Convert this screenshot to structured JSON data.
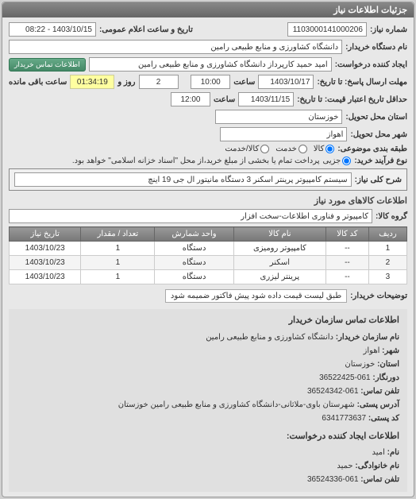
{
  "header": {
    "title": "جزئیات اطلاعات نیاز"
  },
  "need": {
    "label_number": "شماره نیاز:",
    "number": "1103000141000206",
    "label_datetime": "تاریخ و ساعت اعلام عمومی:",
    "datetime": "1403/10/15 - 08:22",
    "label_buyer": "نام دستگاه خریدار:",
    "buyer": "دانشگاه کشاورزی و منابع طبیعی رامین",
    "label_creator": "ایجاد کننده درخواست:",
    "creator": "امید حمید کارپرداز دانشگاه کشاورزی و منابع طبیعی رامین",
    "contact_btn": "اطلاعات تماس خریدار",
    "label_deadline": "مهلت ارسال پاسخ: تا تاریخ:",
    "deadline_date": "1403/10/17",
    "label_hour": "ساعت",
    "deadline_time": "10:00",
    "remain_days": "2",
    "label_days_and": "روز و",
    "remain_time": "01:34:19",
    "label_remain": "ساعت باقی مانده",
    "label_quote": "حداقل تاریخ اعتبار قیمت: تا تاریخ:",
    "quote_date": "1403/11/15",
    "quote_time": "12:00",
    "label_province": "استان محل تحویل:",
    "province": "خوزستان",
    "label_city": "شهر محل تحویل:",
    "city": "اهواز",
    "label_class": "طبقه بندی موضوعی:",
    "opt_goods": "کالا",
    "opt_service": "خدمت",
    "opt_both": "کالا/خدمت",
    "opt_other": "جزیی",
    "label_process": "نوع فرآیند خرید:",
    "process_note": "پرداخت تمام یا بخشی از مبلغ خرید،از محل \"اسناد خزانه اسلامی\" خواهد بود."
  },
  "desc": {
    "label": "شرح کلی نیاز:",
    "text": "سیستم کامپیوتر پرینتر اسکنر 3 دستگاه مانیتور ال جی 19 اینچ"
  },
  "items_title": "اطلاعات کالاهای مورد نیاز",
  "group": {
    "label": "گروه کالا:",
    "value": "کامپیوتر و فناوری اطلاعات-سخت افزار"
  },
  "table": {
    "cols": [
      "ردیف",
      "کد کالا",
      "نام کالا",
      "واحد شمارش",
      "تعداد / مقدار",
      "تاریخ نیاز"
    ],
    "rows": [
      [
        "1",
        "--",
        "کامپیوتر رومیزی",
        "دستگاه",
        "1",
        "1403/10/23"
      ],
      [
        "2",
        "--",
        "اسکنر",
        "دستگاه",
        "1",
        "1403/10/23"
      ],
      [
        "3",
        "--",
        "پرینتر لیزری",
        "دستگاه",
        "1",
        "1403/10/23"
      ]
    ]
  },
  "buyer_note": {
    "label": "توضیحات خریدار:",
    "text": "طبق لیست قیمت داده شود پیش فاکتور ضمیمه شود"
  },
  "contact": {
    "title": "اطلاعات تماس سازمان خریدار",
    "org_label": "نام سازمان خریدار:",
    "org": "دانشگاه کشاورزی و منابع طبیعی رامین",
    "city_label": "شهر:",
    "city": "اهواز",
    "province_label": "استان:",
    "province": "خوزستان",
    "fax_label": "دورنگار:",
    "fax": "061-36522425",
    "phone_label": "تلفن تماس:",
    "phone": "061-36524342",
    "address_label": "آدرس پستی:",
    "address": "شهرستان باوی-ملاثانی-دانشگاه کشاورزی و منابع طبیعی رامین خوزستان",
    "postcode_label": "کد پستی:",
    "postcode": "6341773637",
    "req_title": "اطلاعات ایجاد کننده درخواست:",
    "name_label": "نام:",
    "name": "امید",
    "lname_label": "نام خانوادگی:",
    "lname": "حمید",
    "tel_label": "تلفن تماس:",
    "tel": "061-36524336"
  }
}
